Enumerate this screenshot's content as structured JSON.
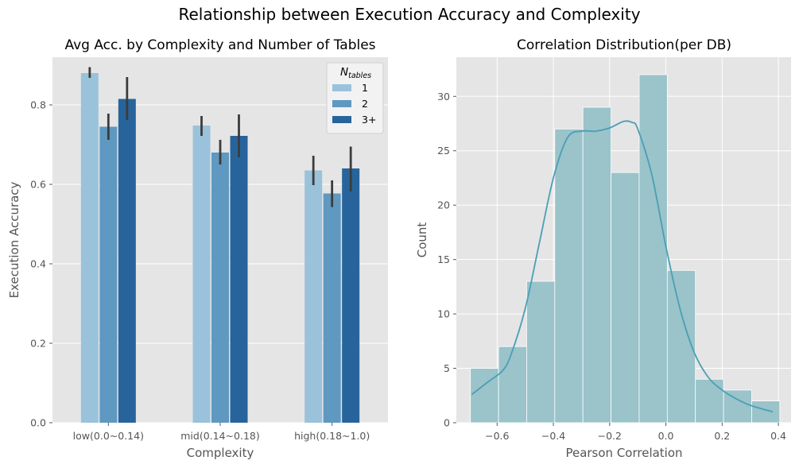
{
  "figure_title": "Relationship between Execution Accuracy and Complexity",
  "chart_data": [
    {
      "type": "bar",
      "title": "Avg Acc. by Complexity and Number of Tables",
      "xlabel": "Complexity",
      "ylabel": "Execution Accuracy",
      "ylim": [
        0,
        0.92
      ],
      "yticks": [
        0.0,
        0.2,
        0.4,
        0.6,
        0.8
      ],
      "ytick_labels": [
        "0.0",
        "0.2",
        "0.4",
        "0.6",
        "0.8"
      ],
      "categories": [
        "low(0.0~0.14)",
        "mid(0.14~0.18)",
        "high(0.18~1.0)"
      ],
      "legend": {
        "title_main": "N",
        "title_sub": "tables",
        "position": "top-right"
      },
      "series": [
        {
          "name": "1",
          "color": "#9ac2db",
          "values": [
            0.88,
            0.748,
            0.635
          ],
          "err_low": [
            0.868,
            0.722,
            0.598
          ],
          "err_high": [
            0.895,
            0.772,
            0.672
          ]
        },
        {
          "name": "2",
          "color": "#5f98c0",
          "values": [
            0.745,
            0.68,
            0.577
          ],
          "err_low": [
            0.712,
            0.65,
            0.543
          ],
          "err_high": [
            0.778,
            0.712,
            0.61
          ]
        },
        {
          "name": "3+",
          "color": "#28649c",
          "values": [
            0.815,
            0.722,
            0.64
          ],
          "err_low": [
            0.762,
            0.668,
            0.582
          ],
          "err_high": [
            0.87,
            0.776,
            0.695
          ]
        }
      ]
    },
    {
      "type": "histogram",
      "title": "Correlation Distribution(per DB)",
      "xlabel": "Pearson Correlation",
      "ylabel": "Count",
      "xlim": [
        -0.745,
        0.445
      ],
      "ylim": [
        0,
        33.6
      ],
      "xticks": [
        -0.6,
        -0.4,
        -0.2,
        0.0,
        0.2,
        0.4
      ],
      "xtick_labels": [
        "−0.6",
        "−0.4",
        "−0.2",
        "0.0",
        "0.2",
        "0.4"
      ],
      "yticks": [
        0,
        5,
        10,
        15,
        20,
        25,
        30
      ],
      "ytick_labels": [
        "0",
        "5",
        "10",
        "15",
        "20",
        "25",
        "30"
      ],
      "bin_edges": [
        -0.695,
        -0.595,
        -0.495,
        -0.395,
        -0.295,
        -0.195,
        -0.095,
        0.005,
        0.105,
        0.205,
        0.305,
        0.405
      ],
      "counts": [
        5,
        7,
        13,
        27,
        29,
        23,
        32,
        14,
        4,
        3,
        2
      ],
      "bar_color": "#9ac3ca",
      "kde_color": "#4a9fb5",
      "kde": {
        "x": [
          -0.69,
          -0.63,
          -0.58,
          -0.55,
          -0.5,
          -0.45,
          -0.4,
          -0.35,
          -0.3,
          -0.25,
          -0.2,
          -0.15,
          -0.12,
          -0.1,
          -0.05,
          0.0,
          0.05,
          0.1,
          0.15,
          0.2,
          0.25,
          0.3,
          0.38
        ],
        "y": [
          2.6,
          3.8,
          4.8,
          6.3,
          10.5,
          16.5,
          22.5,
          26.2,
          26.8,
          26.8,
          27.1,
          27.7,
          27.6,
          27.0,
          22.8,
          16.2,
          10.5,
          6.5,
          4.2,
          3.0,
          2.2,
          1.6,
          1.0
        ]
      }
    }
  ]
}
